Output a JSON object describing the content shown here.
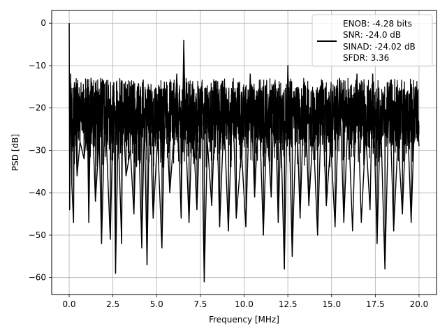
{
  "chart_data": {
    "type": "line",
    "xlabel": "Frequency [MHz]",
    "ylabel": "PSD [dB]",
    "xlim": [
      -1.0,
      21.0
    ],
    "ylim": [
      -64,
      3
    ],
    "xticks": [
      0.0,
      2.5,
      5.0,
      7.5,
      10.0,
      12.5,
      15.0,
      17.5,
      20.0
    ],
    "xtick_labels": [
      "0.0",
      "2.5",
      "5.0",
      "7.5",
      "10.0",
      "12.5",
      "15.0",
      "17.5",
      "20.0"
    ],
    "yticks": [
      0,
      -10,
      -20,
      -30,
      -40,
      -50,
      -60
    ],
    "ytick_labels": [
      "0",
      "−10",
      "−20",
      "−30",
      "−40",
      "−50",
      "−60"
    ],
    "grid": true,
    "legend_position": "top-right",
    "legend_entries": [
      "ENOB: -4.28 bits",
      "SNR: -24.0 dB",
      "SINAD: -24.02 dB",
      "SFDR: 3.36"
    ],
    "series": [
      {
        "color": "#000000",
        "noise_floor_db": {
          "upper_envelope": -13,
          "lower_envelope": -38,
          "median": -22
        },
        "x": [
          0.0,
          0.03,
          0.08,
          0.15,
          0.25,
          0.3,
          0.45,
          0.62,
          0.85,
          1.05,
          1.12,
          1.25,
          1.5,
          1.72,
          1.85,
          2.05,
          2.35,
          2.55,
          2.65,
          2.8,
          3.0,
          3.05,
          3.25,
          3.5,
          3.7,
          3.9,
          4.15,
          4.3,
          4.45,
          4.6,
          4.8,
          5.05,
          5.3,
          5.5,
          5.75,
          6.0,
          6.15,
          6.4,
          6.55,
          6.65,
          6.85,
          7.05,
          7.3,
          7.55,
          7.72,
          7.9,
          8.15,
          8.4,
          8.6,
          8.85,
          9.1,
          9.35,
          9.55,
          9.85,
          10.1,
          10.35,
          10.6,
          10.85,
          11.1,
          11.3,
          11.55,
          11.75,
          11.95,
          12.1,
          12.3,
          12.5,
          12.75,
          13.0,
          13.2,
          13.45,
          13.7,
          13.95,
          14.2,
          14.45,
          14.7,
          14.95,
          15.2,
          15.45,
          15.7,
          15.95,
          16.2,
          16.45,
          16.7,
          16.95,
          17.2,
          17.35,
          17.6,
          17.8,
          18.05,
          18.3,
          18.55,
          18.8,
          19.05,
          19.3,
          19.55,
          19.8,
          20.0
        ],
        "y": [
          0,
          -44,
          -12,
          -38,
          -47,
          -14,
          -36,
          -28,
          -32,
          -24,
          -47,
          -13,
          -42,
          -27,
          -52,
          -20,
          -51,
          -14,
          -59,
          -25,
          -52,
          -19,
          -36,
          -30,
          -45,
          -15,
          -53,
          -22,
          -57,
          -18,
          -46,
          -27,
          -53,
          -17,
          -40,
          -26,
          -12,
          -46,
          -4,
          -25,
          -47,
          -21,
          -44,
          -15,
          -61,
          -28,
          -43,
          -14,
          -48,
          -22,
          -49,
          -17,
          -46,
          -30,
          -48,
          -12,
          -41,
          -18,
          -50,
          -23,
          -41,
          -14,
          -47,
          -25,
          -58,
          -10,
          -55,
          -20,
          -46,
          -14,
          -43,
          -25,
          -50,
          -16,
          -43,
          -28,
          -48,
          -13,
          -47,
          -21,
          -49,
          -12,
          -47,
          -26,
          -44,
          -12,
          -52,
          -21,
          -58,
          -15,
          -49,
          -27,
          -45,
          -18,
          -47,
          -15,
          -29
        ]
      }
    ]
  }
}
